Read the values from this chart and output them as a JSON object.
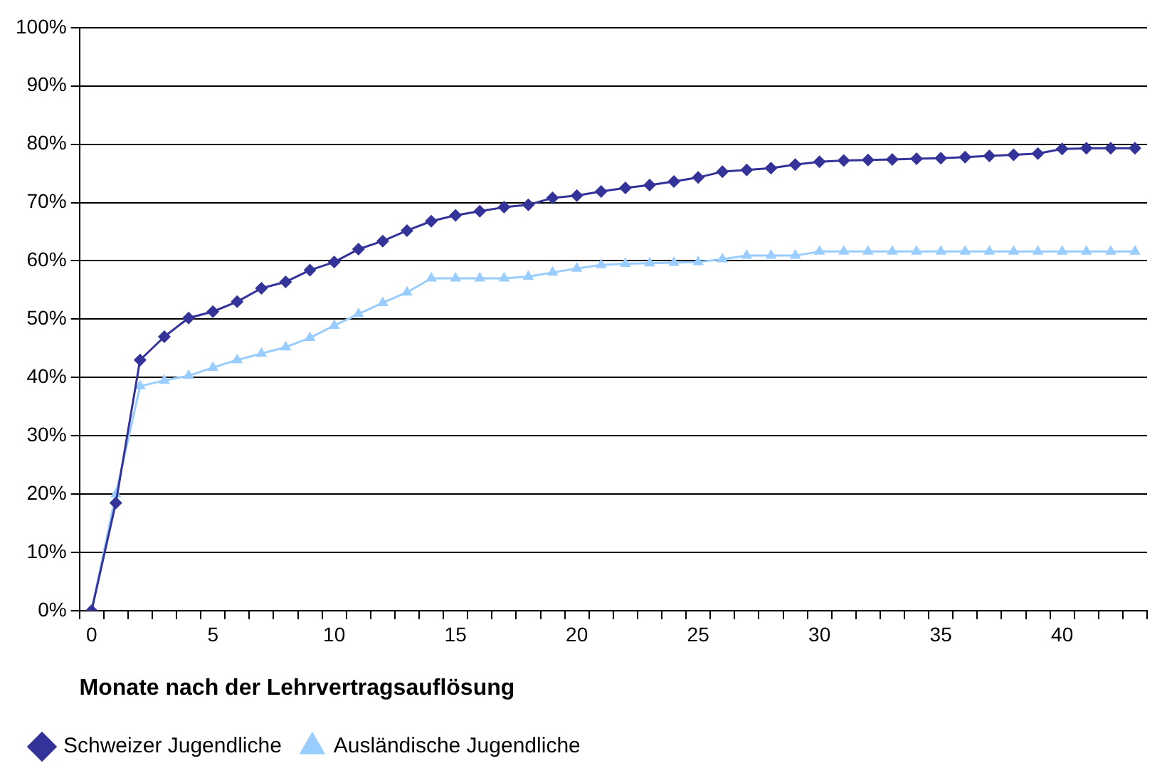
{
  "chart_data": {
    "type": "line",
    "xlabel": "Monate nach der Lehrvertragsauflösung",
    "categories": [
      "0",
      null,
      null,
      null,
      null,
      "5",
      null,
      null,
      null,
      null,
      "10",
      null,
      null,
      null,
      null,
      "15",
      null,
      null,
      null,
      null,
      "20",
      null,
      null,
      null,
      null,
      "25",
      null,
      null,
      null,
      null,
      "30",
      null,
      null,
      null,
      null,
      "35",
      null,
      null,
      null,
      null,
      "40",
      null,
      null,
      null
    ],
    "series": [
      {
        "name": "Schweizer Jugendliche",
        "color": "#333399",
        "marker": "diamond",
        "values": [
          0,
          18.5,
          43,
          47,
          50.2,
          51.3,
          53,
          55.3,
          56.4,
          58.4,
          59.8,
          62,
          63.4,
          65.2,
          66.8,
          67.8,
          68.5,
          69.2,
          69.6,
          70.8,
          71.2,
          71.9,
          72.5,
          73,
          73.6,
          74.3,
          75.3,
          75.6,
          75.9,
          76.5,
          77,
          77.2,
          77.3,
          77.4,
          77.5,
          77.6,
          77.8,
          78,
          78.2,
          78.4,
          79.2,
          79.3,
          79.3,
          79.3
        ]
      },
      {
        "name": "Ausländische Jugendliche",
        "color": "#99ccff",
        "marker": "triangle",
        "values": [
          0,
          20,
          38.5,
          39.5,
          40.3,
          41.7,
          43,
          44.1,
          45.2,
          46.8,
          48.9,
          50.9,
          52.8,
          54.6,
          57,
          57,
          57,
          57,
          57.3,
          58,
          58.7,
          59.3,
          59.5,
          59.6,
          59.7,
          59.8,
          60.3,
          60.9,
          60.9,
          60.9,
          61.6,
          61.6,
          61.6,
          61.6,
          61.6,
          61.6,
          61.6,
          61.6,
          61.6,
          61.6,
          61.6,
          61.6,
          61.6,
          61.6
        ]
      }
    ],
    "ylim": [
      0,
      100
    ],
    "yticks": [
      {
        "value": 0,
        "label": "0%"
      },
      {
        "value": 10,
        "label": "10%"
      },
      {
        "value": 20,
        "label": "20%"
      },
      {
        "value": 30,
        "label": "30%"
      },
      {
        "value": 40,
        "label": "40%"
      },
      {
        "value": 50,
        "label": "50%"
      },
      {
        "value": 60,
        "label": "60%"
      },
      {
        "value": 70,
        "label": "70%"
      },
      {
        "value": 80,
        "label": "80%"
      },
      {
        "value": 90,
        "label": "90%"
      },
      {
        "value": 100,
        "label": "100%"
      }
    ],
    "grid": "y",
    "legend": "bottom",
    "line_style": "solid"
  }
}
